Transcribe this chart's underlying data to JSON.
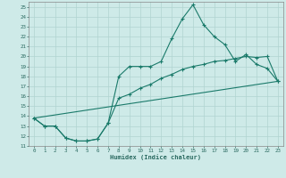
{
  "xlabel": "Humidex (Indice chaleur)",
  "bg_color": "#ceeae8",
  "grid_color": "#b0d4d0",
  "line_color": "#1a7a6a",
  "xlim": [
    -0.5,
    23.5
  ],
  "ylim": [
    11,
    25.5
  ],
  "xticks": [
    0,
    1,
    2,
    3,
    4,
    5,
    6,
    7,
    8,
    9,
    10,
    11,
    12,
    13,
    14,
    15,
    16,
    17,
    18,
    19,
    20,
    21,
    22,
    23
  ],
  "yticks": [
    11,
    12,
    13,
    14,
    15,
    16,
    17,
    18,
    19,
    20,
    21,
    22,
    23,
    24,
    25
  ],
  "line1_x": [
    0,
    1,
    2,
    3,
    4,
    5,
    6,
    7,
    8,
    9,
    10,
    11,
    12,
    13,
    14,
    15,
    16,
    17,
    18,
    19,
    20,
    21,
    22,
    23
  ],
  "line1_y": [
    13.8,
    13.0,
    13.0,
    11.8,
    11.5,
    11.5,
    11.7,
    13.3,
    18.0,
    19.0,
    19.0,
    19.0,
    19.5,
    21.8,
    23.8,
    25.2,
    23.2,
    22.0,
    21.2,
    19.5,
    20.2,
    19.2,
    18.8,
    17.5
  ],
  "line2_x": [
    0,
    1,
    2,
    3,
    4,
    5,
    6,
    7,
    8,
    9,
    10,
    11,
    12,
    13,
    14,
    15,
    16,
    17,
    18,
    19,
    20,
    21,
    22,
    23
  ],
  "line2_y": [
    13.8,
    13.0,
    13.0,
    11.8,
    11.5,
    11.5,
    11.7,
    13.3,
    15.8,
    16.2,
    16.8,
    17.2,
    17.8,
    18.2,
    18.7,
    19.0,
    19.2,
    19.5,
    19.6,
    19.8,
    20.0,
    19.9,
    20.0,
    17.5
  ],
  "line3_x": [
    0,
    23
  ],
  "line3_y": [
    13.8,
    17.5
  ]
}
